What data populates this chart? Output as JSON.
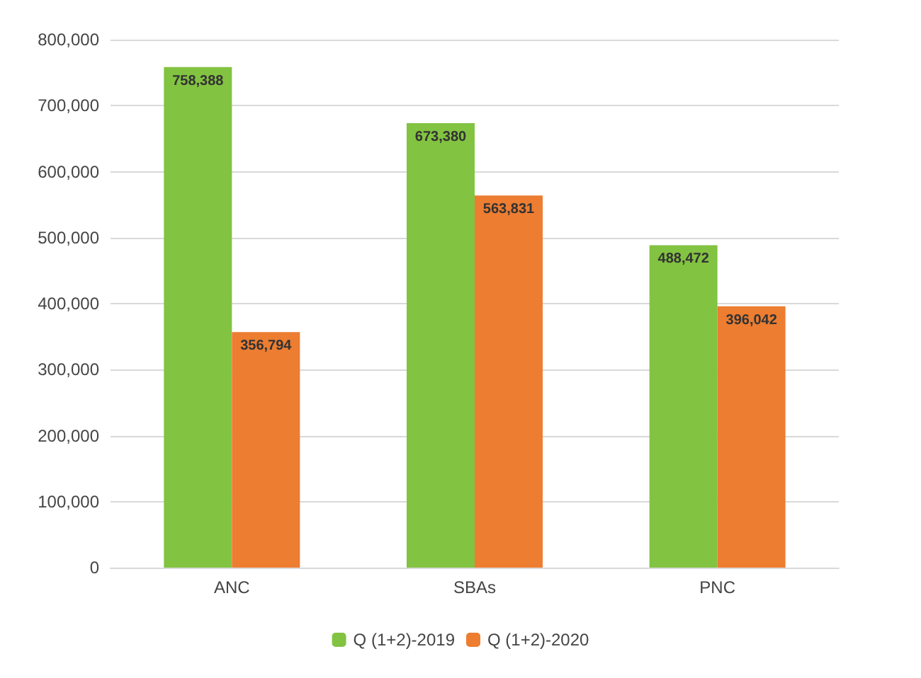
{
  "chart_data": {
    "type": "bar",
    "categories": [
      "ANC",
      "SBAs",
      "PNC"
    ],
    "series": [
      {
        "name": "Q (1+2)-2019",
        "color": "#82c341",
        "values": [
          758388,
          673380,
          488472
        ],
        "value_labels": [
          "758,388",
          "673,380",
          "488,472"
        ]
      },
      {
        "name": "Q (1+2)-2020",
        "color": "#ed7d31",
        "values": [
          356794,
          563831,
          396042
        ],
        "value_labels": [
          "356,794",
          "563,831",
          "396,042"
        ]
      }
    ],
    "ylim": [
      0,
      800000
    ],
    "yticks": [
      0,
      {
        "value": 100000,
        "label": "100,000"
      },
      {
        "value": 200000,
        "label": "200,000"
      },
      {
        "value": 300000,
        "label": "300,000"
      },
      {
        "value": 400000,
        "label": "400,000"
      },
      {
        "value": 500000,
        "label": "500,000"
      },
      {
        "value": 600000,
        "label": "600,000"
      },
      {
        "value": 700000,
        "label": "700,000"
      },
      {
        "value": 800000,
        "label": "800,000"
      }
    ],
    "grid": "y",
    "legend": "bottom"
  }
}
